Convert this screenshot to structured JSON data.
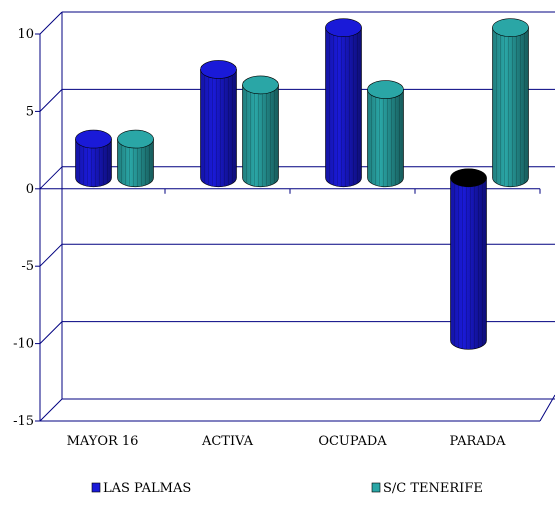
{
  "chart_data": {
    "type": "bar",
    "style": "3d-cylinder",
    "categories": [
      "MAYOR 16",
      "ACTIVA",
      "OCUPADA",
      "PARADA"
    ],
    "series": [
      {
        "name": "LAS PALMAS",
        "values": [
          2.5,
          7.0,
          9.7,
          -10.5
        ],
        "color": "#1a1ad8"
      },
      {
        "name": "S/C TENERIFE",
        "values": [
          2.5,
          6.0,
          5.7,
          9.7
        ],
        "color": "#2aa6a6"
      }
    ],
    "ylim": [
      -15,
      10
    ],
    "yticks": [
      10,
      5,
      0,
      -5,
      -10,
      -15
    ],
    "title": "",
    "xlabel": "",
    "ylabel": "",
    "grid": true,
    "legend": "bottom",
    "colors": {
      "axis": "#000080",
      "grid": "#000080",
      "parada_top": "#000000"
    }
  }
}
